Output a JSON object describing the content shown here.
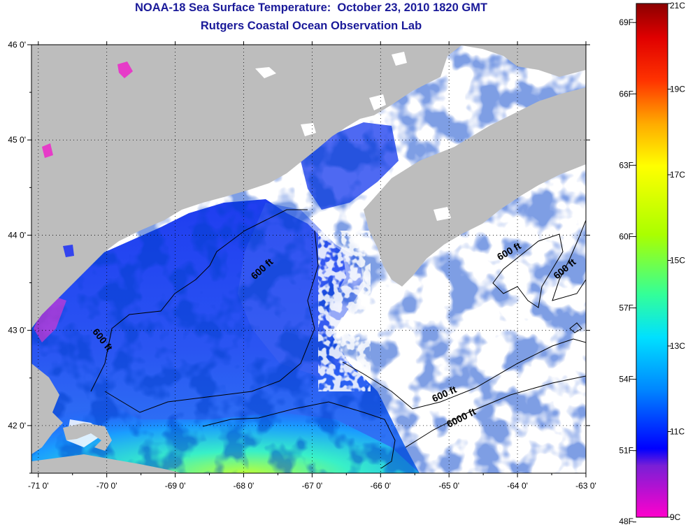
{
  "header": {
    "title_line_1": "NOAA-18 Sea Surface Temperature:  October 23, 2010 1820 GMT",
    "title_line_2": "Rutgers Coastal Ocean Observation Lab"
  },
  "map": {
    "lon_range": [
      -71.1,
      -63.0
    ],
    "lat_range": [
      41.5,
      46.0
    ],
    "lon_ticks": [
      {
        "value": -71,
        "label": "-71 0'"
      },
      {
        "value": -70,
        "label": "-70 0'"
      },
      {
        "value": -69,
        "label": "-69 0'"
      },
      {
        "value": -68,
        "label": "-68 0'"
      },
      {
        "value": -67,
        "label": "-67 0'"
      },
      {
        "value": -66,
        "label": "-66 0'"
      },
      {
        "value": -65,
        "label": "-65 0'"
      },
      {
        "value": -64,
        "label": "-64 0'"
      },
      {
        "value": -63,
        "label": "-63 0'"
      }
    ],
    "lat_ticks": [
      {
        "value": 46,
        "label": "46 0'"
      },
      {
        "value": 45,
        "label": "45 0'"
      },
      {
        "value": 44,
        "label": "44 0'"
      },
      {
        "value": 43,
        "label": "43 0'"
      },
      {
        "value": 42,
        "label": "42 0'"
      }
    ],
    "contour_labels": [
      {
        "text": "600 ft",
        "lon": -67.7,
        "lat": 43.62,
        "rotation": -42
      },
      {
        "text": "600 ft",
        "lon": -70.1,
        "lat": 42.88,
        "rotation": 52
      },
      {
        "text": "600 ft",
        "lon": -64.1,
        "lat": 43.8,
        "rotation": -30
      },
      {
        "text": "600 ft",
        "lon": -63.28,
        "lat": 43.62,
        "rotation": -40
      },
      {
        "text": "600 ft",
        "lon": -65.05,
        "lat": 42.3,
        "rotation": -24
      },
      {
        "text": "6000 ft",
        "lon": -64.8,
        "lat": 42.05,
        "rotation": -27
      }
    ],
    "colors": {
      "land": "#bdbdbd",
      "cloud_mask": "#ffffff",
      "contour": "#000000",
      "grid": "#000000"
    }
  },
  "colorbar": {
    "left_labels": [
      {
        "label": "69F",
        "value": 69
      },
      {
        "label": "66F",
        "value": 66
      },
      {
        "label": "63F",
        "value": 63
      },
      {
        "label": "60F",
        "value": 60
      },
      {
        "label": "57F",
        "value": 57
      },
      {
        "label": "54F",
        "value": 54
      },
      {
        "label": "51F",
        "value": 51
      },
      {
        "label": "48F",
        "value": 48
      }
    ],
    "right_labels": [
      {
        "label": "21C",
        "value": 21
      },
      {
        "label": "19C",
        "value": 19
      },
      {
        "label": "17C",
        "value": 17
      },
      {
        "label": "15C",
        "value": 15
      },
      {
        "label": "13C",
        "value": 13
      },
      {
        "label": "11C",
        "value": 11
      },
      {
        "label": "9C",
        "value": 9
      }
    ],
    "range_c": [
      9,
      21
    ],
    "stops": [
      {
        "value": 9.0,
        "color": "#ff00cc"
      },
      {
        "value": 10.2,
        "color": "#7a1fd6"
      },
      {
        "value": 10.6,
        "color": "#0000ff"
      },
      {
        "value": 12.0,
        "color": "#0088ff"
      },
      {
        "value": 13.2,
        "color": "#00e0ff"
      },
      {
        "value": 14.2,
        "color": "#33ff99"
      },
      {
        "value": 15.6,
        "color": "#aaff00"
      },
      {
        "value": 17.2,
        "color": "#ffff00"
      },
      {
        "value": 18.2,
        "color": "#ffaa00"
      },
      {
        "value": 19.2,
        "color": "#ff3300"
      },
      {
        "value": 20.2,
        "color": "#e00000"
      },
      {
        "value": 21.0,
        "color": "#8b0000"
      }
    ]
  }
}
